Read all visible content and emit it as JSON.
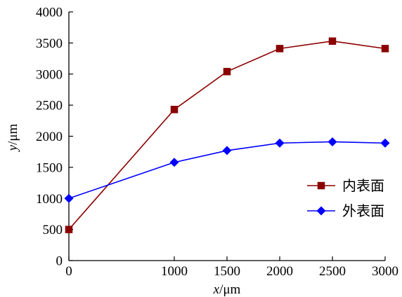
{
  "chart_data": {
    "type": "line",
    "x": [
      0,
      1000,
      1500,
      2000,
      2500,
      3000
    ],
    "xlim": [
      0,
      3000
    ],
    "ylim": [
      0,
      4000
    ],
    "xticks": [
      0,
      1000,
      1500,
      2000,
      2500,
      3000
    ],
    "yticks": [
      0,
      500,
      1000,
      1500,
      2000,
      2500,
      3000,
      3500,
      4000
    ],
    "xlabel_var": "x",
    "xlabel_unit": "/μm",
    "ylabel_var": "y",
    "ylabel_unit": "/μm",
    "grid": false,
    "legend_position": "right",
    "series": [
      {
        "name": "内表面",
        "color": "#8b0000",
        "marker": "square",
        "values": [
          500,
          2430,
          3040,
          3410,
          3530,
          3410
        ]
      },
      {
        "name": "外表面",
        "color": "#0000ff",
        "marker": "diamond",
        "values": [
          1000,
          1580,
          1770,
          1890,
          1910,
          1890
        ]
      }
    ]
  }
}
